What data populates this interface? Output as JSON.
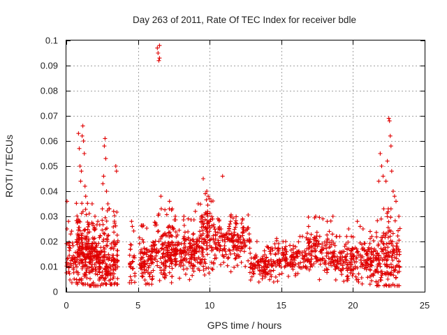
{
  "chart_data": {
    "type": "scatter",
    "title": "Day 263 of 2011, Rate Of TEC Index for receiver bdle",
    "xlabel": "GPS time / hours",
    "ylabel": "ROTI / TECUs",
    "xlim": [
      0,
      25
    ],
    "ylim": [
      0,
      0.1
    ],
    "xticks": [
      0,
      5,
      10,
      15,
      20,
      25
    ],
    "yticks": [
      0,
      0.01,
      0.02,
      0.03,
      0.04,
      0.05,
      0.06,
      0.07,
      0.08,
      0.09,
      0.1
    ],
    "grid": true,
    "marker": "plus",
    "color": "#e00000",
    "density_profile": [
      {
        "x_from": 0.0,
        "x_to": 0.7,
        "low": 0.006,
        "center": 0.012,
        "high": 0.022,
        "count": 45
      },
      {
        "x_from": 0.7,
        "x_to": 1.6,
        "low": 0.005,
        "center": 0.015,
        "high": 0.032,
        "count": 160
      },
      {
        "x_from": 1.6,
        "x_to": 2.4,
        "low": 0.004,
        "center": 0.012,
        "high": 0.025,
        "count": 120
      },
      {
        "x_from": 2.4,
        "x_to": 3.6,
        "low": 0.005,
        "center": 0.012,
        "high": 0.03,
        "count": 150
      },
      {
        "x_from": 4.4,
        "x_to": 4.8,
        "low": 0.006,
        "center": 0.01,
        "high": 0.022,
        "count": 25
      },
      {
        "x_from": 5.1,
        "x_to": 6.0,
        "low": 0.005,
        "center": 0.011,
        "high": 0.024,
        "count": 80
      },
      {
        "x_from": 6.0,
        "x_to": 7.5,
        "low": 0.006,
        "center": 0.015,
        "high": 0.03,
        "count": 150
      },
      {
        "x_from": 7.5,
        "x_to": 9.3,
        "low": 0.008,
        "center": 0.016,
        "high": 0.026,
        "count": 160
      },
      {
        "x_from": 9.3,
        "x_to": 10.3,
        "low": 0.01,
        "center": 0.02,
        "high": 0.035,
        "count": 110
      },
      {
        "x_from": 10.3,
        "x_to": 12.8,
        "low": 0.011,
        "center": 0.019,
        "high": 0.028,
        "count": 180
      },
      {
        "x_from": 12.8,
        "x_to": 14.5,
        "low": 0.004,
        "center": 0.01,
        "high": 0.016,
        "count": 110
      },
      {
        "x_from": 14.5,
        "x_to": 16.8,
        "low": 0.007,
        "center": 0.013,
        "high": 0.02,
        "count": 130
      },
      {
        "x_from": 16.8,
        "x_to": 18.6,
        "low": 0.008,
        "center": 0.016,
        "high": 0.027,
        "count": 120
      },
      {
        "x_from": 18.6,
        "x_to": 19.5,
        "low": 0.006,
        "center": 0.012,
        "high": 0.02,
        "count": 60
      },
      {
        "x_from": 19.5,
        "x_to": 21.6,
        "low": 0.005,
        "center": 0.011,
        "high": 0.02,
        "count": 150
      },
      {
        "x_from": 21.6,
        "x_to": 23.3,
        "low": 0.004,
        "center": 0.012,
        "high": 0.03,
        "count": 170
      }
    ],
    "highlight_points": [
      [
        0.05,
        0.036
      ],
      [
        0.05,
        0.025
      ],
      [
        0.1,
        0.019
      ],
      [
        0.15,
        0.028
      ],
      [
        0.85,
        0.063
      ],
      [
        0.9,
        0.057
      ],
      [
        0.95,
        0.05
      ],
      [
        1.0,
        0.044
      ],
      [
        1.05,
        0.048
      ],
      [
        1.1,
        0.062
      ],
      [
        1.15,
        0.066
      ],
      [
        1.2,
        0.06
      ],
      [
        1.25,
        0.055
      ],
      [
        1.3,
        0.042
      ],
      [
        1.35,
        0.038
      ],
      [
        1.8,
        0.035
      ],
      [
        2.0,
        0.03
      ],
      [
        2.2,
        0.028
      ],
      [
        2.55,
        0.043
      ],
      [
        2.6,
        0.046
      ],
      [
        2.65,
        0.058
      ],
      [
        2.7,
        0.061
      ],
      [
        2.75,
        0.053
      ],
      [
        2.8,
        0.04
      ],
      [
        2.9,
        0.035
      ],
      [
        3.0,
        0.033
      ],
      [
        3.3,
        0.032
      ],
      [
        3.45,
        0.05
      ],
      [
        3.5,
        0.048
      ],
      [
        4.55,
        0.028
      ],
      [
        4.6,
        0.026
      ],
      [
        5.3,
        0.026
      ],
      [
        6.35,
        0.097
      ],
      [
        6.4,
        0.095
      ],
      [
        6.45,
        0.092
      ],
      [
        6.5,
        0.093
      ],
      [
        6.5,
        0.098
      ],
      [
        6.6,
        0.038
      ],
      [
        7.2,
        0.036
      ],
      [
        7.6,
        0.03
      ],
      [
        8.2,
        0.03
      ],
      [
        8.5,
        0.029
      ],
      [
        9.0,
        0.032
      ],
      [
        9.2,
        0.035
      ],
      [
        9.55,
        0.045
      ],
      [
        9.7,
        0.039
      ],
      [
        9.8,
        0.04
      ],
      [
        9.9,
        0.038
      ],
      [
        10.0,
        0.037
      ],
      [
        10.1,
        0.036
      ],
      [
        10.9,
        0.046
      ],
      [
        11.5,
        0.03
      ],
      [
        12.3,
        0.029
      ],
      [
        13.3,
        0.02
      ],
      [
        14.0,
        0.018
      ],
      [
        14.2,
        0.016
      ],
      [
        15.3,
        0.02
      ],
      [
        16.3,
        0.022
      ],
      [
        16.9,
        0.026
      ],
      [
        17.4,
        0.03
      ],
      [
        17.9,
        0.029
      ],
      [
        18.2,
        0.028
      ],
      [
        18.6,
        0.03
      ],
      [
        19.7,
        0.025
      ],
      [
        20.3,
        0.028
      ],
      [
        20.5,
        0.026
      ],
      [
        20.7,
        0.025
      ],
      [
        21.2,
        0.024
      ],
      [
        21.8,
        0.044
      ],
      [
        21.9,
        0.055
      ],
      [
        22.0,
        0.05
      ],
      [
        22.1,
        0.046
      ],
      [
        22.3,
        0.044
      ],
      [
        22.4,
        0.052
      ],
      [
        22.5,
        0.069
      ],
      [
        22.55,
        0.068
      ],
      [
        22.6,
        0.062
      ],
      [
        22.65,
        0.058
      ],
      [
        22.7,
        0.048
      ],
      [
        22.8,
        0.04
      ],
      [
        22.9,
        0.038
      ],
      [
        23.0,
        0.036
      ],
      [
        23.2,
        0.03
      ]
    ]
  }
}
